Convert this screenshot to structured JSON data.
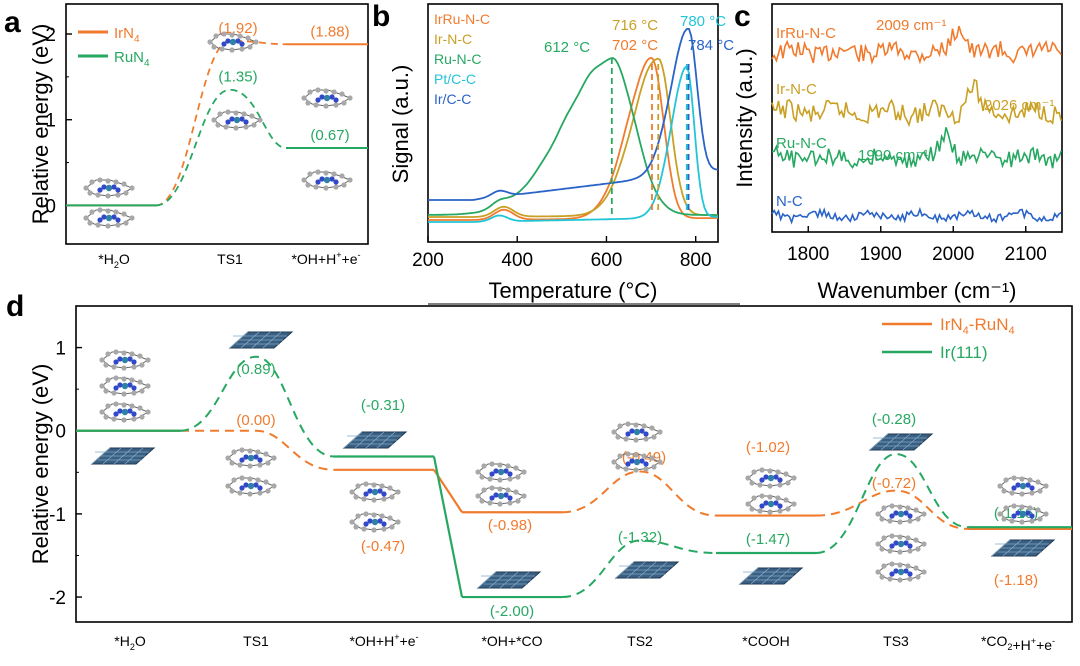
{
  "chart_data": [
    {
      "panel": "a",
      "type": "line",
      "ylabel": "Relative energy (eV)",
      "ylim": [
        -0.45,
        2.35
      ],
      "yticks": [
        0,
        1,
        2
      ],
      "categories": [
        "*H2O",
        "TS1",
        "*OH+H+e-"
      ],
      "legend_position": "top-left",
      "series": [
        {
          "name": "IrN4",
          "color": "#f07b2e",
          "values": [
            0,
            1.92,
            1.88
          ],
          "labels": [
            "",
            "(1.92)",
            "(1.88)"
          ]
        },
        {
          "name": "RuN4",
          "color": "#27a862",
          "values": [
            0,
            1.35,
            0.67
          ],
          "labels": [
            "",
            "(1.35)",
            "(0.67)"
          ]
        }
      ]
    },
    {
      "panel": "b",
      "type": "line",
      "xlabel": "Temperature (oC)",
      "ylabel": "Signal (a.u.)",
      "xlim": [
        200,
        850
      ],
      "xticks": [
        200,
        400,
        600,
        800
      ],
      "legend_position": "top-left",
      "series": [
        {
          "name": "IrRu-N-C",
          "color": "#f07b2e",
          "peak": 702,
          "peak_label": "702 oC"
        },
        {
          "name": "Ir-N-C",
          "color": "#c9a024",
          "peak": 716,
          "peak_label": "716 oC"
        },
        {
          "name": "Ru-N-C",
          "color": "#27a862",
          "peak": 612,
          "peak_label": "612 oC"
        },
        {
          "name": "Pt/C-C",
          "color": "#22c5d8",
          "peak": 780,
          "peak_label": "780 oC"
        },
        {
          "name": "Ir/C-C",
          "color": "#2a63c8",
          "peak": 784,
          "peak_label": "784 oC"
        }
      ]
    },
    {
      "panel": "c",
      "type": "line",
      "xlabel": "Wavenumber (cm-1)",
      "ylabel": "Intensity (a.u.)",
      "xlim": [
        1750,
        2150
      ],
      "xticks": [
        1800,
        1900,
        2000,
        2100
      ],
      "series": [
        {
          "name": "IrRu-N-C",
          "color": "#f07b2e",
          "peak": 2009,
          "peak_label": "2009 cm-1"
        },
        {
          "name": "Ir-N-C",
          "color": "#c9a024",
          "peak": 2026,
          "peak_label": "2026 cm-1"
        },
        {
          "name": "Ru-N-C",
          "color": "#27a862",
          "peak": 1990,
          "peak_label": "1990 cm-1"
        },
        {
          "name": "N-C",
          "color": "#2a63c8",
          "peak": null,
          "peak_label": ""
        }
      ]
    },
    {
      "panel": "d",
      "type": "line",
      "ylabel": "Relative energy (eV)",
      "ylim": [
        -2.3,
        1.5
      ],
      "yticks": [
        -2,
        -1,
        0,
        1
      ],
      "categories": [
        "*H2O",
        "TS1",
        "*OH+H+e-",
        "*OH+*CO",
        "TS2",
        "*COOH",
        "TS3",
        "*CO2+H+e-"
      ],
      "legend_position": "top-right",
      "series": [
        {
          "name": "IrN4-RuN4",
          "color": "#f07b2e",
          "values": [
            0,
            0.0,
            -0.47,
            -0.98,
            -0.49,
            -1.02,
            -0.72,
            -1.18
          ],
          "labels": [
            "",
            "(0.00)",
            "(-0.47)",
            "(-0.98)",
            "(-0.49)",
            "(-1.02)",
            "(-0.72)",
            "(-1.18)"
          ]
        },
        {
          "name": "Ir(111)",
          "color": "#27a862",
          "values": [
            0,
            0.89,
            -0.31,
            -2.0,
            -1.32,
            -1.47,
            -0.28,
            -1.16
          ],
          "labels": [
            "",
            "(0.89)",
            "(-0.31)",
            "(-2.00)",
            "(-1.32)",
            "(-1.47)",
            "(-0.28)",
            "(-1.16)"
          ]
        }
      ]
    }
  ],
  "panels": {
    "a": {
      "letter": "a",
      "legend": [
        {
          "text": "IrN",
          "sub": "4"
        },
        {
          "text": "RuN",
          "sub": "4"
        }
      ]
    },
    "b": {
      "letter": "b"
    },
    "c": {
      "letter": "c"
    },
    "d": {
      "letter": "d"
    }
  },
  "cat_labels_a": [
    "*H2O",
    "TS1",
    "*OH+H+e-"
  ],
  "cat_labels_d": [
    "*H2O",
    "TS1",
    "*OH+H+e-",
    "*OH+*CO",
    "TS2",
    "*COOH",
    "TS3",
    "*CO2+H+e-"
  ],
  "legend_d": [
    "IrN4-RuN4",
    "Ir(111)"
  ]
}
